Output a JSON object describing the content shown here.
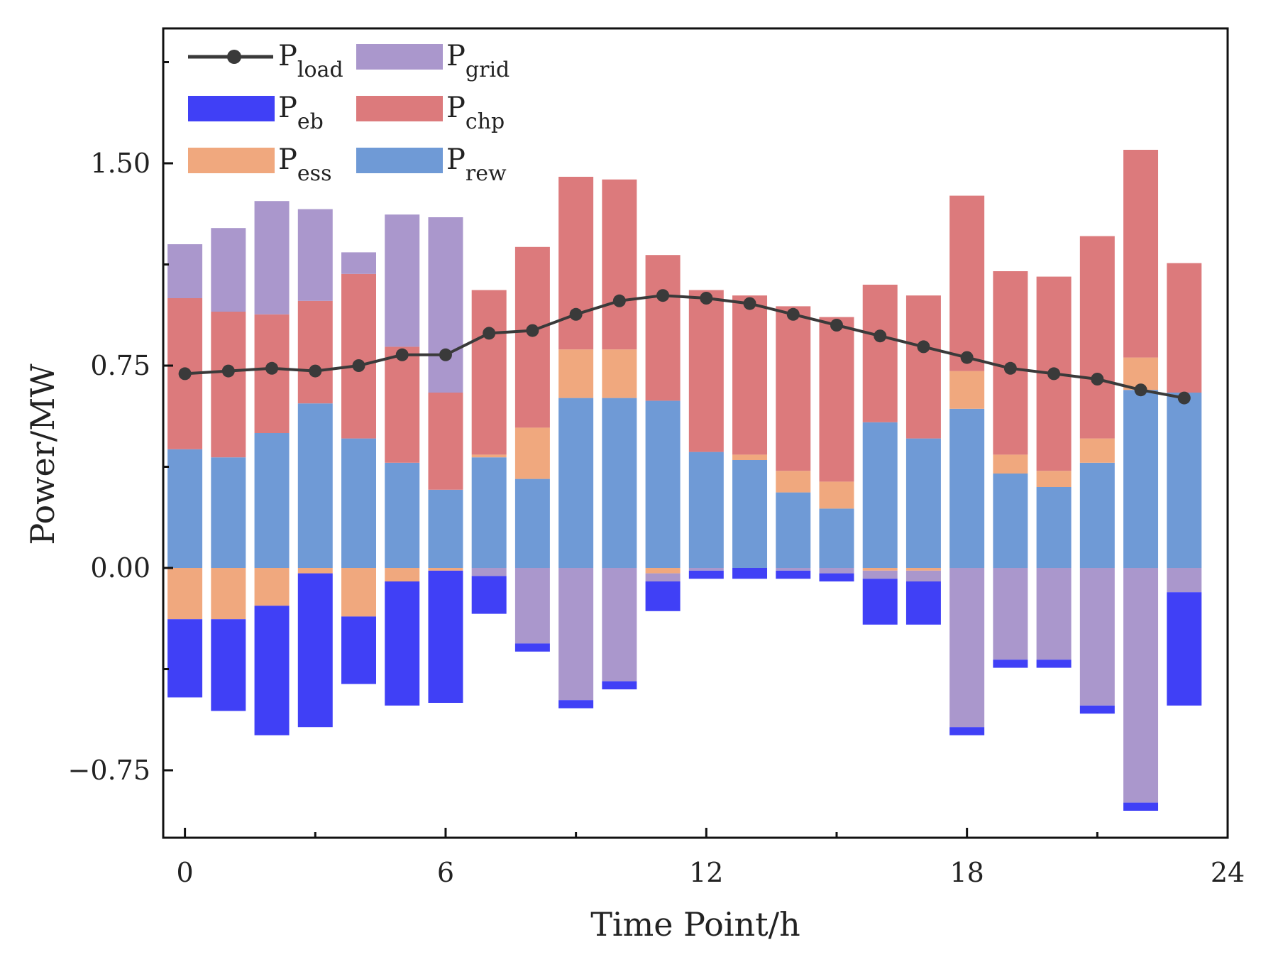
{
  "chart_data": {
    "type": "bar",
    "subtype": "stacked-bar-with-line",
    "xlabel": "Time Point/h",
    "ylabel": "Power/MW",
    "xlim": [
      -0.5,
      24
    ],
    "ylim": [
      -1.0,
      2.0
    ],
    "x_ticks": [
      "0",
      "6",
      "12",
      "18",
      "24"
    ],
    "y_ticks": [
      "1.50",
      "0.75",
      "0.00",
      "−0.75"
    ],
    "y_tick_values": [
      1.5,
      0.75,
      0.0,
      -0.75
    ],
    "x": [
      0,
      1,
      2,
      3,
      4,
      5,
      6,
      7,
      8,
      9,
      10,
      11,
      12,
      13,
      14,
      15,
      16,
      17,
      18,
      19,
      20,
      21,
      22,
      23
    ],
    "legend": [
      {
        "key": "load",
        "base": "P",
        "sub": "load"
      },
      {
        "key": "grid",
        "base": "P",
        "sub": "grid"
      },
      {
        "key": "eb",
        "base": "P",
        "sub": "eb"
      },
      {
        "key": "chp",
        "base": "P",
        "sub": "chp"
      },
      {
        "key": "ess",
        "base": "P",
        "sub": "ess"
      },
      {
        "key": "rew",
        "base": "P",
        "sub": "rew"
      }
    ],
    "legend_position": "top-left",
    "colors": {
      "rew": "#6f9ad6",
      "ess": "#f0a87e",
      "chp": "#dc7a7c",
      "grid": "#aa97cc",
      "eb": "#4040f6",
      "load": "#3a3a3a"
    },
    "series": [
      {
        "name": "P_rew",
        "key": "rew",
        "values": [
          0.44,
          0.41,
          0.5,
          0.61,
          0.48,
          0.39,
          0.29,
          0.41,
          0.33,
          0.63,
          0.63,
          0.62,
          0.43,
          0.4,
          0.28,
          0.22,
          0.54,
          0.48,
          0.59,
          0.35,
          0.3,
          0.39,
          0.66,
          0.65
        ]
      },
      {
        "name": "P_ess",
        "key": "ess",
        "values": [
          -0.19,
          -0.19,
          -0.14,
          -0.02,
          -0.18,
          -0.05,
          -0.01,
          0.01,
          0.19,
          0.18,
          0.18,
          -0.02,
          0.0,
          0.02,
          0.08,
          0.1,
          -0.01,
          -0.01,
          0.14,
          0.07,
          0.06,
          0.09,
          0.12,
          0.0
        ]
      },
      {
        "name": "P_chp",
        "key": "chp",
        "values": [
          0.56,
          0.54,
          0.44,
          0.38,
          0.61,
          0.43,
          0.36,
          0.61,
          0.67,
          0.64,
          0.63,
          0.54,
          0.6,
          0.59,
          0.61,
          0.61,
          0.51,
          0.53,
          0.65,
          0.68,
          0.72,
          0.75,
          0.77,
          0.48
        ]
      },
      {
        "name": "P_grid",
        "key": "grid",
        "values": [
          0.2,
          0.31,
          0.42,
          0.34,
          0.08,
          0.49,
          0.65,
          -0.03,
          -0.28,
          -0.49,
          -0.42,
          -0.03,
          -0.01,
          0.0,
          -0.01,
          -0.02,
          -0.03,
          -0.04,
          -0.59,
          -0.34,
          -0.34,
          -0.51,
          -0.87,
          -0.09
        ]
      },
      {
        "name": "P_eb",
        "key": "eb",
        "values": [
          -0.29,
          -0.34,
          -0.48,
          -0.57,
          -0.25,
          -0.46,
          -0.49,
          -0.14,
          -0.03,
          -0.03,
          -0.03,
          -0.11,
          -0.03,
          -0.04,
          -0.03,
          -0.03,
          -0.17,
          -0.16,
          -0.03,
          -0.03,
          -0.03,
          -0.03,
          -0.03,
          -0.42
        ]
      },
      {
        "name": "P_load",
        "key": "load",
        "values": [
          0.72,
          0.73,
          0.74,
          0.73,
          0.75,
          0.79,
          0.79,
          0.87,
          0.88,
          0.94,
          0.99,
          1.01,
          1.0,
          0.98,
          0.94,
          0.9,
          0.86,
          0.82,
          0.78,
          0.74,
          0.72,
          0.7,
          0.66,
          0.63
        ]
      }
    ]
  }
}
